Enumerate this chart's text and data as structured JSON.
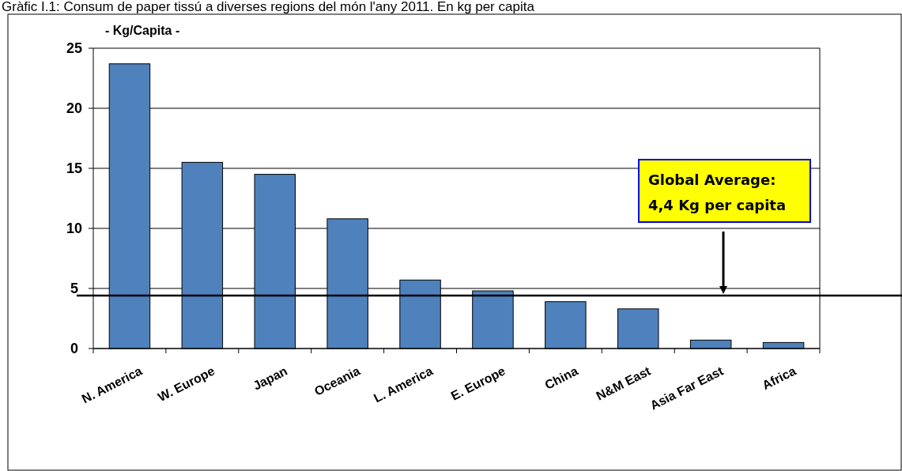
{
  "chart_data": {
    "type": "bar",
    "title": "Gràfic I.1: Consum de paper tissú a diverses regions del món l'any 2011. En kg per capita",
    "ylabel": "- Kg/Capita -",
    "categories": [
      "N. America",
      "W. Europe",
      "Japan",
      "Oceania",
      "L. America",
      "E. Europe",
      "China",
      "N&M East",
      "Asia Far East",
      "Africa"
    ],
    "values": [
      23.7,
      15.5,
      14.5,
      10.8,
      5.7,
      4.8,
      3.9,
      3.3,
      0.7,
      0.5
    ],
    "color": "#4f81bd",
    "ylim": [
      0,
      25
    ],
    "yticks": [
      0,
      5,
      10,
      15,
      20,
      25
    ],
    "grid": "y",
    "ref_lines": [
      {
        "axis": "y",
        "value": 4.4,
        "label": "Global Average:\n4,4 Kg per capita",
        "color": "#000000"
      }
    ]
  }
}
